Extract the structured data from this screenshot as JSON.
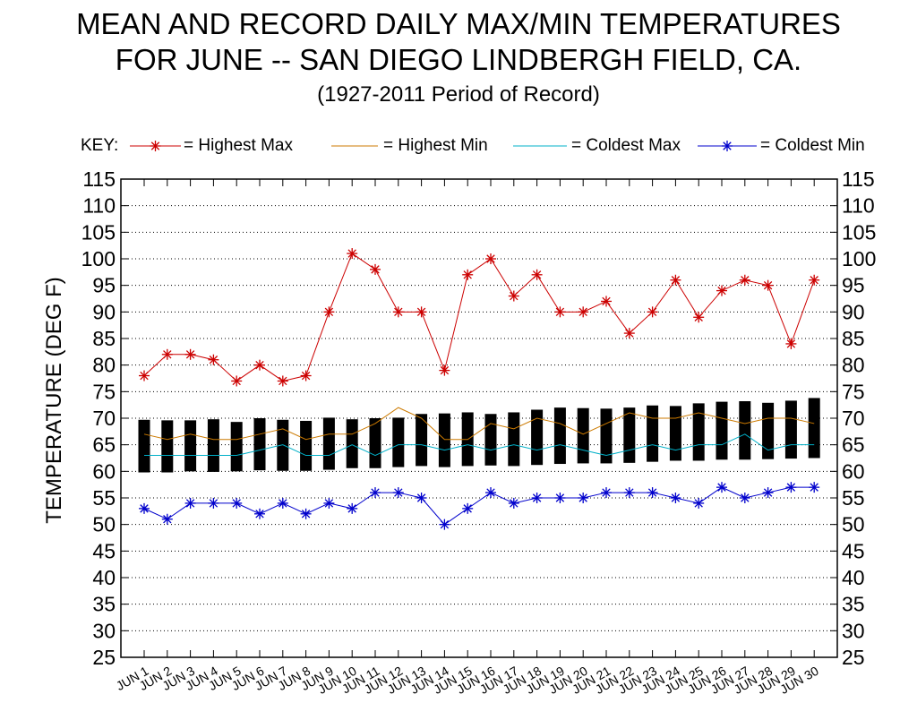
{
  "chart_data": {
    "type": "line",
    "title": "MEAN AND RECORD DAILY MAX/MIN TEMPERATURES",
    "title_line2": "FOR JUNE -- SAN DIEGO LINDBERGH FIELD, CA.",
    "subtitle": "(1927-2011 Period of Record)",
    "ylabel": "TEMPERATURE (DEG F)",
    "xlabel": "",
    "ylim": [
      25,
      115
    ],
    "y_ticks": [
      25,
      30,
      35,
      40,
      45,
      50,
      55,
      60,
      65,
      70,
      75,
      80,
      85,
      90,
      95,
      100,
      105,
      110,
      115
    ],
    "grid": true,
    "legend": {
      "key_label": "KEY:",
      "placement": "top",
      "entries": [
        "= Highest Max",
        "= Highest Min",
        "= Coldest Max",
        "= Coldest Min"
      ]
    },
    "categories": [
      "JUN 1",
      "JUN 2",
      "JUN 3",
      "JUN 4",
      "JUN 5",
      "JUN 6",
      "JUN 7",
      "JUN 8",
      "JUN 9",
      "JUN 10",
      "JUN 11",
      "JUN 12",
      "JUN 13",
      "JUN 14",
      "JUN 15",
      "JUN 16",
      "JUN 17",
      "JUN 18",
      "JUN 19",
      "JUN 20",
      "JUN 21",
      "JUN 22",
      "JUN 23",
      "JUN 24",
      "JUN 25",
      "JUN 26",
      "JUN 27",
      "JUN 28",
      "JUN 29",
      "JUN 30"
    ],
    "series": [
      {
        "name": "Highest Max",
        "color": "#cc0000",
        "marker": "star",
        "values": [
          78,
          82,
          82,
          81,
          77,
          80,
          77,
          78,
          90,
          101,
          98,
          90,
          90,
          79,
          97,
          100,
          93,
          97,
          90,
          90,
          92,
          86,
          90,
          96,
          89,
          94,
          96,
          95,
          84,
          96
        ]
      },
      {
        "name": "Highest Min",
        "color": "#cc7a00",
        "marker": "none",
        "values": [
          67,
          66,
          67,
          66,
          66,
          67,
          68,
          66,
          67,
          67,
          69,
          72,
          70,
          66,
          66,
          69,
          68,
          70,
          69,
          67,
          69,
          71,
          70,
          70,
          71,
          70,
          69,
          70,
          70,
          69
        ]
      },
      {
        "name": "Coldest Max",
        "color": "#00b0c8",
        "marker": "none",
        "values": [
          63,
          63,
          63,
          63,
          63,
          64,
          65,
          63,
          63,
          65,
          63,
          65,
          65,
          64,
          65,
          64,
          65,
          64,
          65,
          64,
          63,
          64,
          65,
          64,
          65,
          65,
          67,
          64,
          65,
          65
        ]
      },
      {
        "name": "Coldest Min",
        "color": "#0000cc",
        "marker": "star",
        "values": [
          53,
          51,
          54,
          54,
          54,
          52,
          54,
          52,
          54,
          53,
          56,
          56,
          55,
          50,
          53,
          56,
          54,
          55,
          55,
          55,
          56,
          56,
          56,
          55,
          54,
          57,
          55,
          56,
          57,
          57
        ]
      }
    ],
    "mean_range_bars": {
      "color": "#000000",
      "mean_max": [
        69.7,
        69.6,
        69.6,
        69.8,
        69.3,
        70.0,
        69.7,
        69.5,
        70.1,
        69.8,
        70.0,
        70.1,
        70.8,
        70.9,
        71.1,
        70.8,
        71.1,
        71.6,
        72.0,
        71.9,
        71.8,
        72.0,
        72.4,
        72.3,
        72.8,
        73.1,
        73.2,
        72.9,
        73.3,
        73.8
      ],
      "mean_min": [
        59.8,
        59.8,
        60.0,
        59.9,
        60.0,
        60.2,
        60.1,
        60.1,
        60.3,
        60.6,
        60.6,
        60.8,
        61.0,
        60.8,
        61.0,
        61.1,
        61.0,
        61.2,
        61.4,
        61.5,
        61.5,
        61.6,
        61.8,
        62.0,
        62.0,
        62.2,
        62.2,
        62.3,
        62.4,
        62.5
      ]
    }
  }
}
